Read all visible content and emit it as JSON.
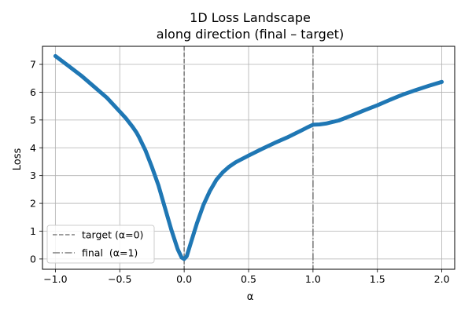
{
  "chart_data": {
    "type": "line",
    "title": "1D Loss Landscape",
    "subtitle": "along direction (final – target)",
    "xlabel": "α",
    "ylabel": "Loss",
    "xlim": [
      -1.1,
      2.1
    ],
    "ylim": [
      -0.37,
      7.65
    ],
    "xticks": [
      -1.0,
      -0.5,
      0.0,
      0.5,
      1.0,
      1.5,
      2.0
    ],
    "xtick_labels": [
      "−1.0",
      "−0.5",
      "0.0",
      "0.5",
      "1.0",
      "1.5",
      "2.0"
    ],
    "yticks": [
      0,
      1,
      2,
      3,
      4,
      5,
      6,
      7
    ],
    "ytick_labels": [
      "0",
      "1",
      "2",
      "3",
      "4",
      "5",
      "6",
      "7"
    ],
    "grid": true,
    "legend_position": "lower-left",
    "series": [
      {
        "color": "#1f77b4",
        "x": [
          -1.0,
          -0.9,
          -0.8,
          -0.7,
          -0.6,
          -0.5,
          -0.45,
          -0.4,
          -0.37,
          -0.35,
          -0.3,
          -0.25,
          -0.2,
          -0.15,
          -0.1,
          -0.05,
          -0.02,
          0.0,
          0.02,
          0.05,
          0.1,
          0.15,
          0.2,
          0.25,
          0.3,
          0.35,
          0.4,
          0.5,
          0.6,
          0.7,
          0.8,
          0.9,
          0.95,
          1.0,
          1.05,
          1.1,
          1.2,
          1.3,
          1.4,
          1.5,
          1.6,
          1.7,
          1.8,
          1.9,
          2.0
        ],
        "y": [
          7.3,
          6.95,
          6.6,
          6.2,
          5.8,
          5.3,
          5.05,
          4.75,
          4.55,
          4.38,
          3.9,
          3.3,
          2.65,
          1.85,
          1.05,
          0.35,
          0.05,
          0.0,
          0.1,
          0.55,
          1.3,
          1.95,
          2.45,
          2.85,
          3.12,
          3.32,
          3.48,
          3.72,
          3.95,
          4.17,
          4.37,
          4.6,
          4.72,
          4.83,
          4.84,
          4.87,
          4.98,
          5.16,
          5.35,
          5.53,
          5.73,
          5.92,
          6.08,
          6.23,
          6.37
        ]
      }
    ],
    "vlines": [
      {
        "x": 0.0,
        "style": "dashed",
        "color": "#7f7f7f",
        "label": "target (α=0)"
      },
      {
        "x": 1.0,
        "style": "dashdot",
        "color": "#7f7f7f",
        "label": "final  (α=1)"
      }
    ]
  }
}
